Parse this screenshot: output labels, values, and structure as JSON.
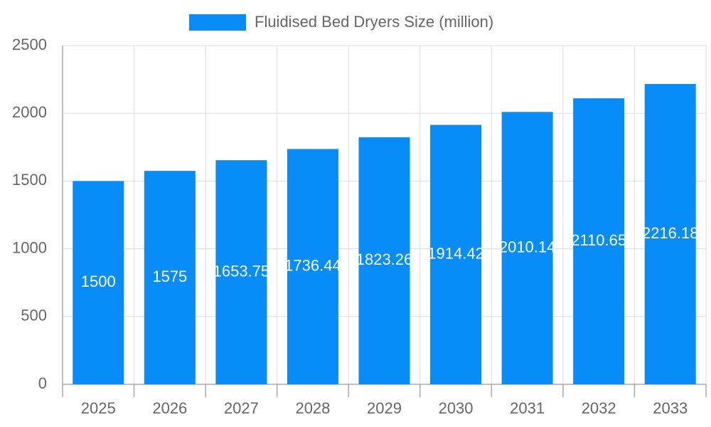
{
  "chart_data": {
    "type": "bar",
    "categories": [
      "2025",
      "2026",
      "2027",
      "2028",
      "2029",
      "2030",
      "2031",
      "2032",
      "2033"
    ],
    "series": [
      {
        "name": "Fluidised Bed Dryers Size (million)",
        "color": "#078cf8",
        "values": [
          1500,
          1575,
          1653.75,
          1736.44,
          1823.26,
          1914.42,
          2010.14,
          2110.65,
          2216.18
        ]
      }
    ],
    "ylim": [
      0,
      2500
    ],
    "yticks": [
      0,
      500,
      1000,
      1500,
      2000,
      2500
    ],
    "grid": true,
    "legend": "top"
  }
}
